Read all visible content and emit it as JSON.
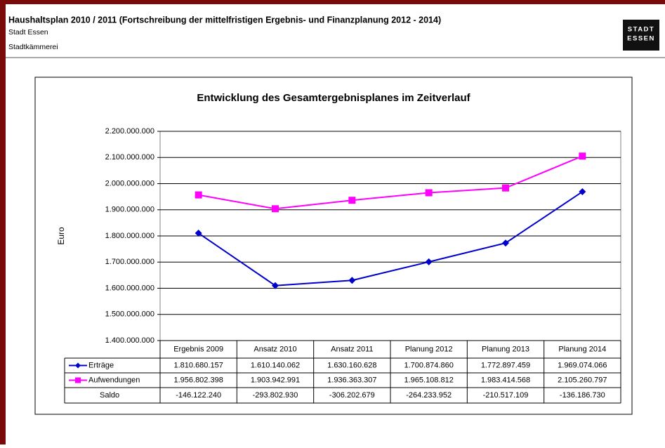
{
  "header": {
    "title": "Haushaltsplan 2010 / 2011 (Fortschreibung der mittelfristigen Ergebnis- und Finanzplanung 2012 - 2014)",
    "lines": [
      "Stadt Essen",
      "Stadtkämmerei"
    ],
    "logo": [
      "STADT",
      "ESSEN"
    ]
  },
  "chart_data": {
    "type": "line",
    "title": "Entwicklung des Gesamtergebnisplanes im Zeitverlauf",
    "y_label": "Euro",
    "categories": [
      "Ergebnis 2009",
      "Ansatz 2010",
      "Ansatz 2011",
      "Planung 2012",
      "Planung 2013",
      "Planung 2014"
    ],
    "series": [
      {
        "name": "Erträge",
        "color": "#0000cc",
        "marker": "diamond",
        "values": [
          1810680157,
          1610140062,
          1630160628,
          1700874860,
          1772897459,
          1969074066
        ],
        "value_labels": [
          "1.810.680.157",
          "1.610.140.062",
          "1.630.160.628",
          "1.700.874.860",
          "1.772.897.459",
          "1.969.074.066"
        ]
      },
      {
        "name": "Aufwendungen",
        "color": "#ff00ff",
        "marker": "square",
        "values": [
          1956802398,
          1903942991,
          1936363307,
          1965108812,
          1983414568,
          2105260797
        ],
        "value_labels": [
          "1.956.802.398",
          "1.903.942.991",
          "1.936.363.307",
          "1.965.108.812",
          "1.983.414.568",
          "2.105.260.797"
        ]
      },
      {
        "name": "Saldo",
        "values": [
          -146122240,
          -293802930,
          -306202679,
          -264233952,
          -210517109,
          -136186730
        ],
        "value_labels": [
          "-146.122.240",
          "-293.802.930",
          "-306.202.679",
          "-264.233.952",
          "-210.517.109",
          "-136.186.730"
        ]
      }
    ],
    "ylim": [
      1400000000,
      2200000000
    ],
    "yticks": [
      {
        "value": 1400000000,
        "label": "1.400.000.000"
      },
      {
        "value": 1500000000,
        "label": "1.500.000.000"
      },
      {
        "value": 1600000000,
        "label": "1.600.000.000"
      },
      {
        "value": 1700000000,
        "label": "1.700.000.000"
      },
      {
        "value": 1800000000,
        "label": "1.800.000.000"
      },
      {
        "value": 1900000000,
        "label": "1.900.000.000"
      },
      {
        "value": 2000000000,
        "label": "2.000.000.000"
      },
      {
        "value": 2100000000,
        "label": "2.100.000.000"
      },
      {
        "value": 2200000000,
        "label": "2.200.000.000"
      }
    ],
    "grid": true
  }
}
